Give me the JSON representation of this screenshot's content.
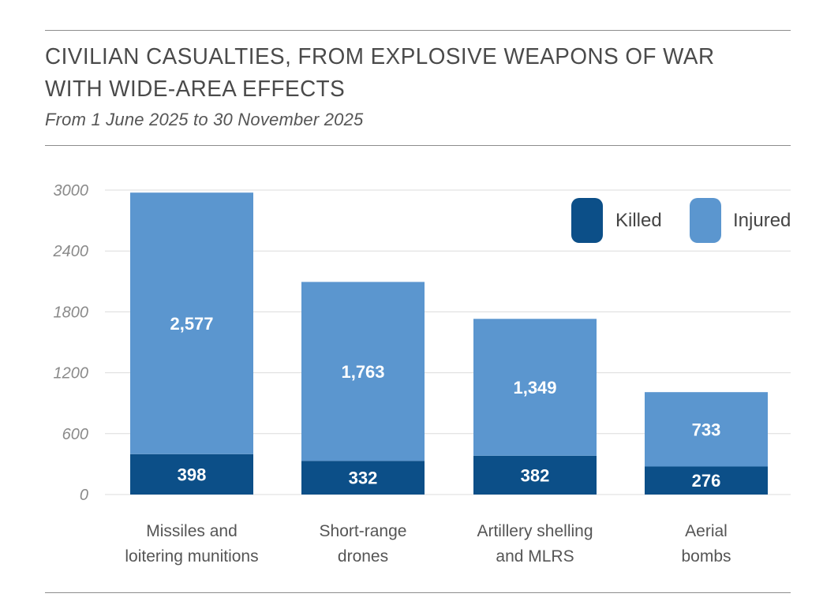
{
  "chart_data": {
    "type": "bar",
    "stacked": true,
    "title": "CIVILIAN CASUALTIES, FROM EXPLOSIVE WEAPONS OF WAR WITH WIDE-AREA EFFECTS",
    "subtitle": "From 1 June 2025 to 30 November 2025",
    "categories": [
      [
        "Missiles and",
        "loitering munitions"
      ],
      [
        "Short-range",
        "drones"
      ],
      [
        "Artillery shelling",
        "and MLRS"
      ],
      [
        "Aerial",
        "bombs"
      ]
    ],
    "series": [
      {
        "name": "Killed",
        "color": "#0c4f88",
        "values": [
          398,
          332,
          382,
          276
        ],
        "labels": [
          "398",
          "332",
          "382",
          "276"
        ]
      },
      {
        "name": "Injured",
        "color": "#5b96cf",
        "values": [
          2577,
          1763,
          1349,
          733
        ],
        "labels": [
          "2,577",
          "1,763",
          "1,349",
          "733"
        ]
      }
    ],
    "ylim": [
      0,
      3000
    ],
    "yticks": [
      0,
      600,
      1200,
      1800,
      2400,
      3000
    ],
    "grid": true,
    "legend_position": "top-right",
    "xlabel": "",
    "ylabel": ""
  }
}
